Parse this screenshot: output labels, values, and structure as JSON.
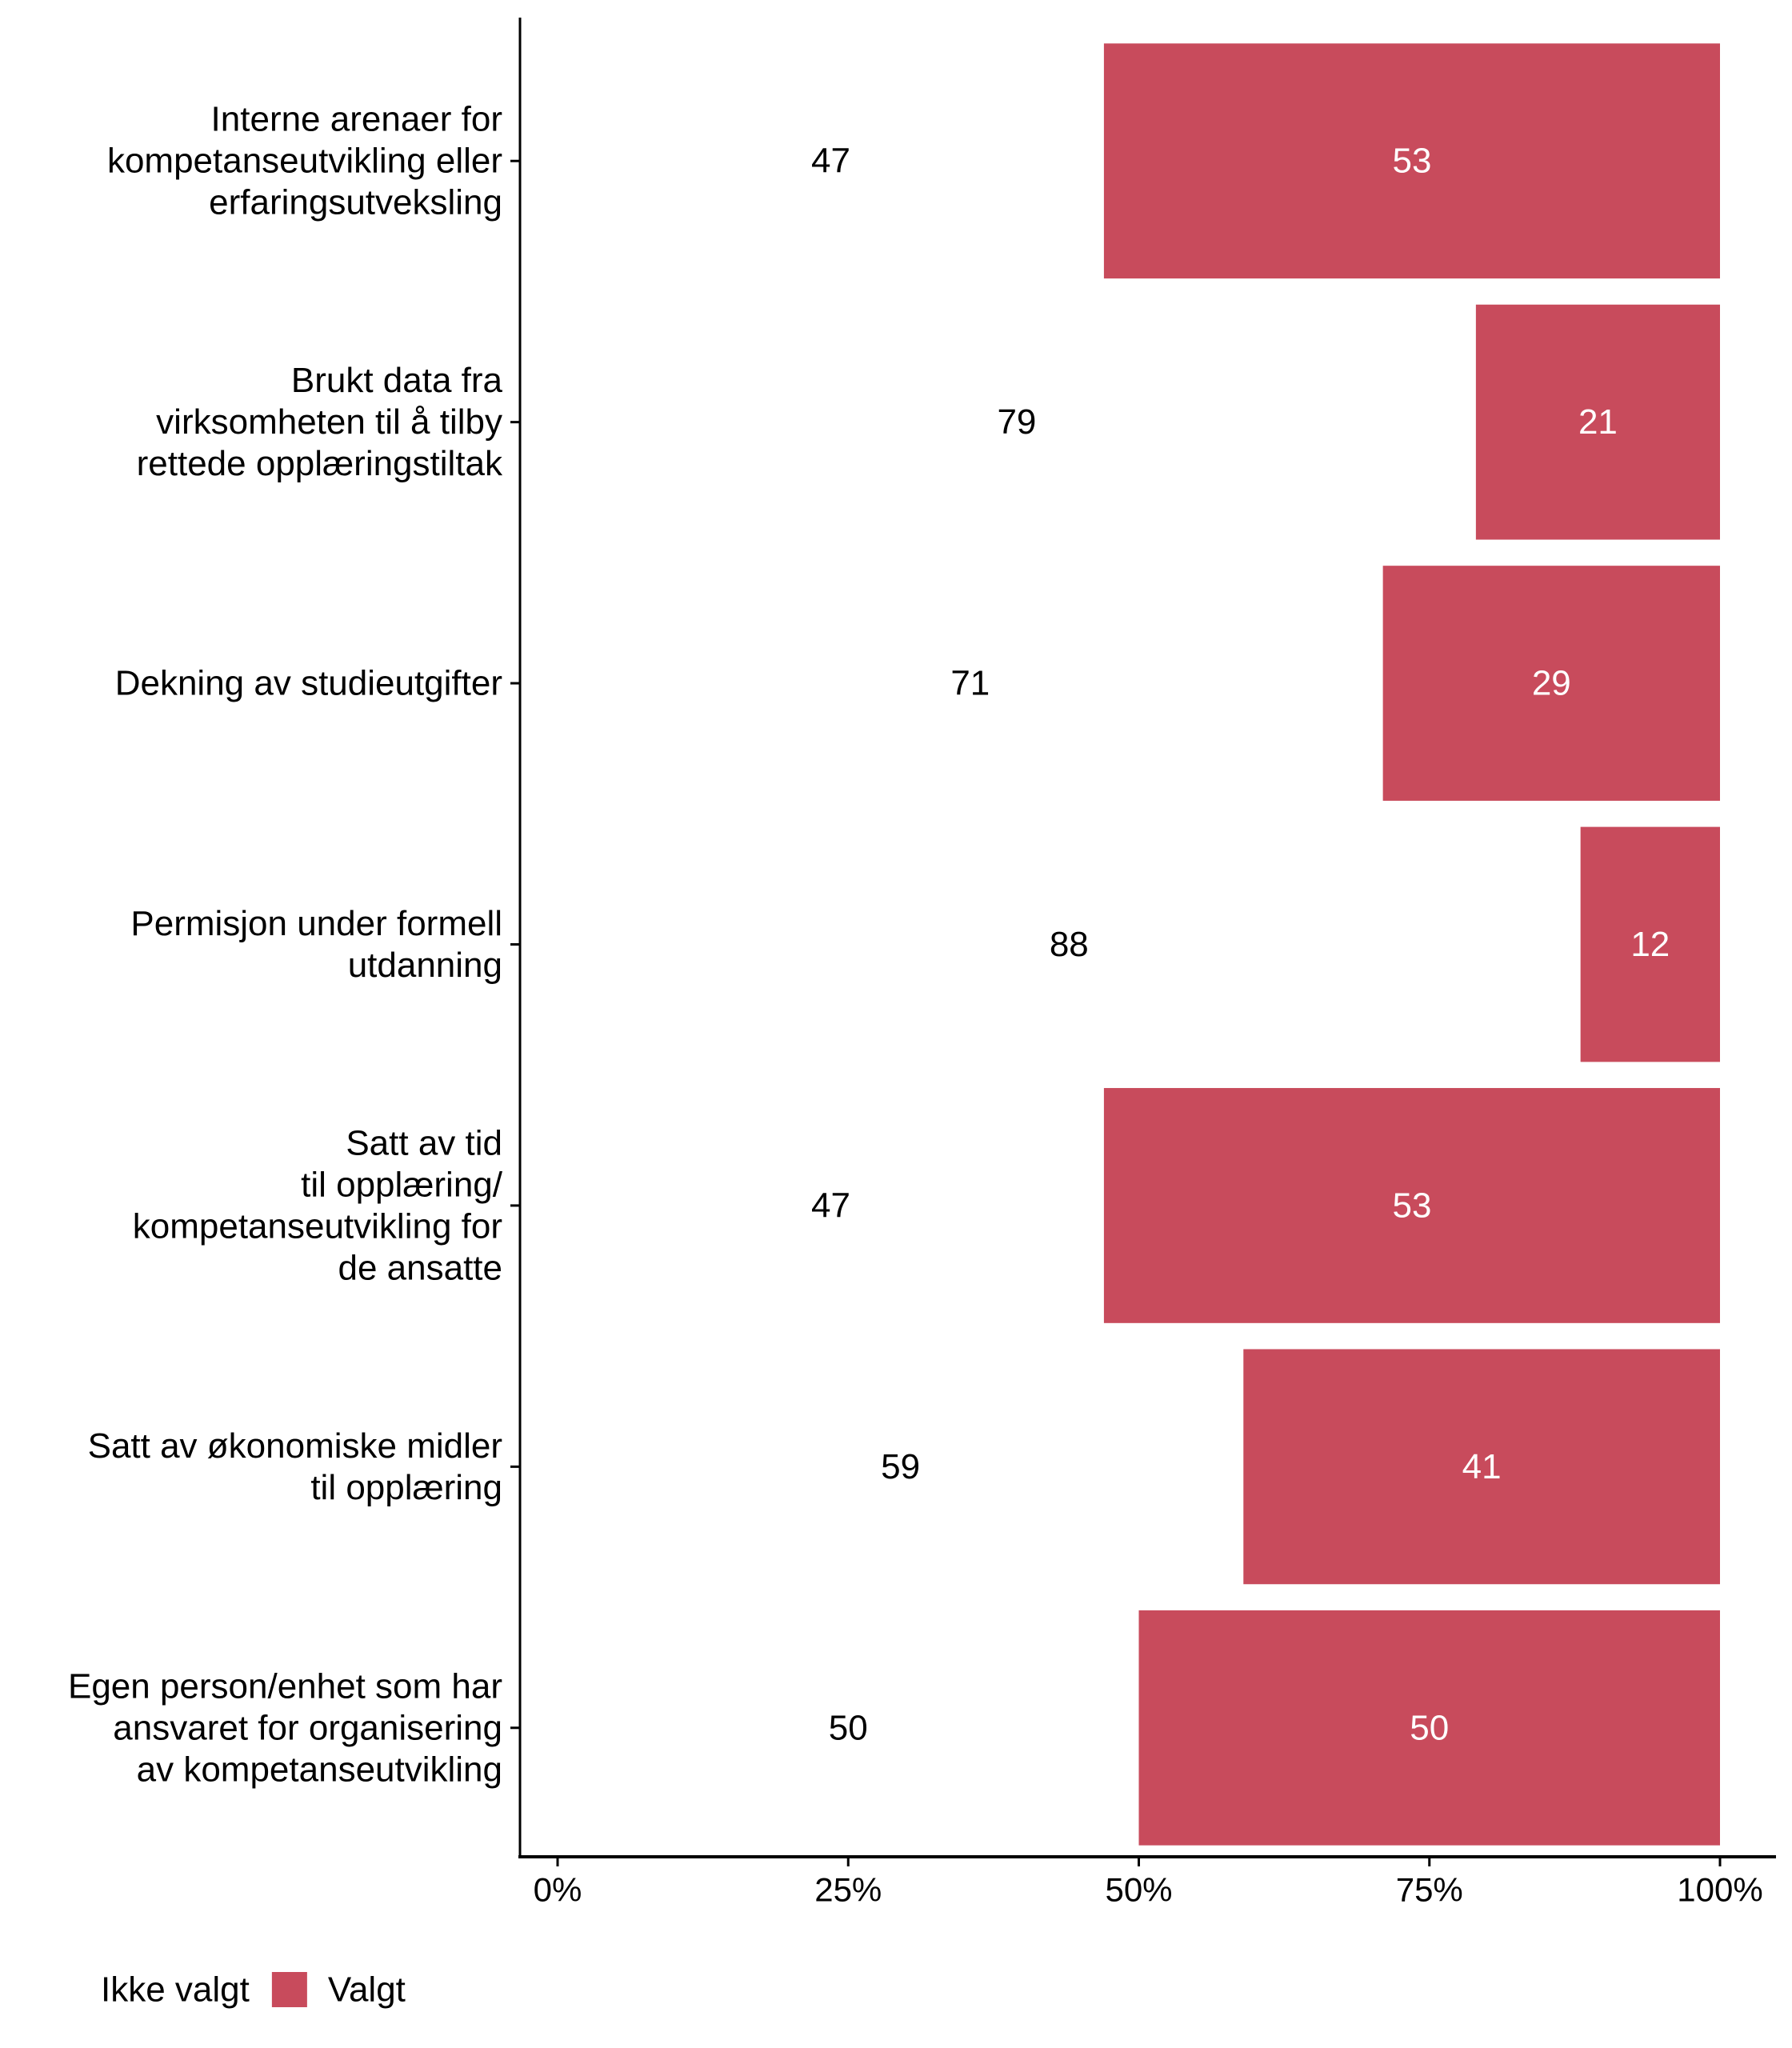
{
  "chart_data": {
    "type": "bar",
    "orientation": "horizontal",
    "stacked": true,
    "title": "",
    "xlabel": "",
    "ylabel": "",
    "xlim": [
      0,
      100
    ],
    "x_ticks": [
      0,
      25,
      50,
      75,
      100
    ],
    "x_tick_labels": [
      "0%",
      "25%",
      "50%",
      "75%",
      "100%"
    ],
    "grid": false,
    "legend_position": "bottom-left",
    "categories": [
      "Interne arenaer for\nkompetanseutvikling eller\nerfaringsutveksling",
      "Brukt data fra\nvirksomheten til å tilby\nrettede opplæringstiltak",
      "Dekning av studieutgifter",
      "Permisjon under formell\nutdanning",
      "Satt av tid\ntil opplæring/\nkompetanseutvikling for\nde ansatte",
      "Satt av økonomiske midler\ntil opplæring",
      "Egen person/enhet som har\nansvaret for organisering\nav kompetanseutvikling"
    ],
    "series": [
      {
        "name": "Ikke valgt",
        "color": "transparent",
        "label_color": "#000000",
        "values": [
          47,
          79,
          71,
          88,
          47,
          59,
          50
        ]
      },
      {
        "name": "Valgt",
        "color": "#C84B5C",
        "label_color": "#ffffff",
        "values": [
          53,
          21,
          29,
          12,
          53,
          41,
          50
        ]
      }
    ]
  }
}
